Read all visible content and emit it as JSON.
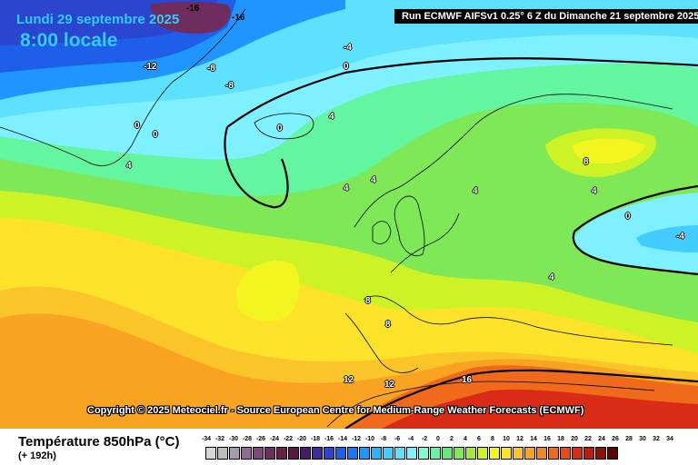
{
  "header": {
    "date": "Lundi 29 septembre 2025",
    "time": "8:00 locale",
    "run": "Run ECMWF AIFSv1 0.25° 6 Z du Dimanche 21 septembre 2025"
  },
  "copyright": "Copyright © 2025 Meteociel.fr - Source European Centre for Medium-Range Weather Forecasts (ECMWF)",
  "legend": {
    "title": "Température 850hPa (°C)",
    "lead": "(+ 192h)",
    "ticks": [
      "-34",
      "-32",
      "-30",
      "-28",
      "-26",
      "-24",
      "-22",
      "-20",
      "-18",
      "-16",
      "-14",
      "-12",
      "-10",
      "-8",
      "-6",
      "-4",
      "-2",
      "0",
      "2",
      "4",
      "6",
      "8",
      "10",
      "12",
      "14",
      "16",
      "18",
      "20",
      "22",
      "24",
      "26",
      "28",
      "30",
      "32",
      "34"
    ],
    "colors": [
      "#d6d6d6",
      "#bdbdbd",
      "#a89ab0",
      "#8f6d96",
      "#7a4a7c",
      "#6e2d5e",
      "#6a1f4a",
      "#5a1840",
      "#4a1a6a",
      "#3a2da0",
      "#2a45d0",
      "#1f5ee8",
      "#1a78f5",
      "#1e95ff",
      "#2ab4ff",
      "#42ccff",
      "#5ee0ff",
      "#7ef0ff",
      "#7effd6",
      "#63f5a0",
      "#5fec76",
      "#7ee856",
      "#a4eb3a",
      "#cdf225",
      "#f2f520",
      "#fde22a",
      "#fbc52a",
      "#f8a322",
      "#f58620",
      "#f06a1c",
      "#e84a1a",
      "#d82c16",
      "#bf1a12",
      "#8e0e0c",
      "#5e0606"
    ]
  },
  "map_labels": [
    {
      "text": "-16"
    },
    {
      "text": "-16"
    },
    {
      "text": "-4"
    },
    {
      "text": "0"
    },
    {
      "text": "-12"
    },
    {
      "text": "-8"
    },
    {
      "text": "-8"
    },
    {
      "text": "0"
    },
    {
      "text": "0"
    },
    {
      "text": "0"
    },
    {
      "text": "4"
    },
    {
      "text": "4"
    },
    {
      "text": "4"
    },
    {
      "text": "4"
    },
    {
      "text": "4"
    },
    {
      "text": "8"
    },
    {
      "text": "4"
    },
    {
      "text": "0"
    },
    {
      "text": "-4"
    },
    {
      "text": "4"
    },
    {
      "text": "8"
    },
    {
      "text": "8"
    },
    {
      "text": "12"
    },
    {
      "text": "12"
    },
    {
      "text": "16"
    }
  ]
}
